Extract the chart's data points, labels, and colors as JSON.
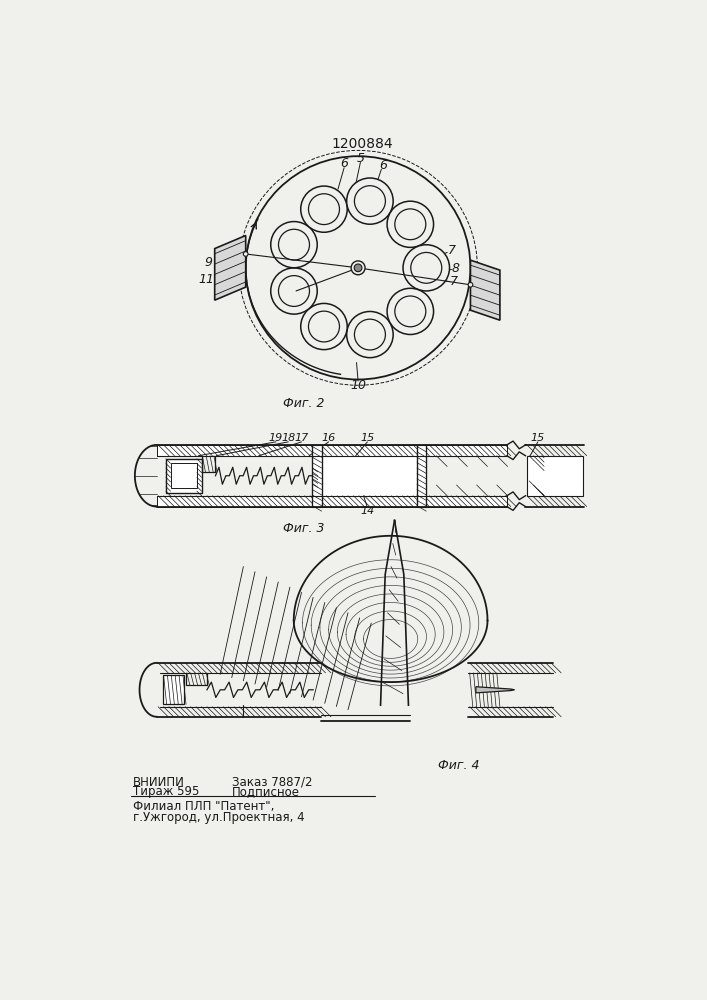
{
  "title": "1200884",
  "fig2_caption": "Фиг. 2",
  "fig3_caption": "Фиг. 3",
  "fig4_caption": "Фиг. 4",
  "footer_line1_col1": "ВНИИПИ",
  "footer_line1_col2": "Заказ 7887/2",
  "footer_line2_col1": "Тираж 595",
  "footer_line2_col2": "Подписное",
  "footer_line3": "Филиал ПЛП \"Патент\",",
  "footer_line4": "г.Ужгород, ул.Проектная, 4",
  "bg_color": "#f0f0ec",
  "line_color": "#1a1a1a"
}
